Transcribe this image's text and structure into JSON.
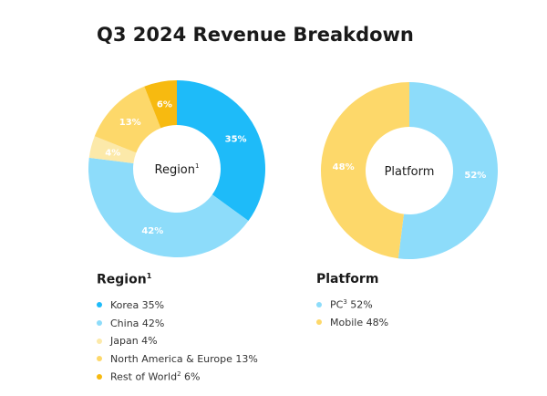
{
  "title": "Q3 2024 Revenue Breakdown",
  "chart_data": [
    {
      "type": "pie",
      "donut": true,
      "center_label": "Region",
      "center_label_sup": "1",
      "legend_title": "Region",
      "legend_title_sup": "1",
      "slices": [
        {
          "name": "Korea",
          "value": 35,
          "label": "35%",
          "legend": "Korea 35%",
          "legend_sup": "",
          "legend_tail": "",
          "color": "#1EBBF9"
        },
        {
          "name": "China",
          "value": 42,
          "label": "42%",
          "legend": "China 42%",
          "legend_sup": "",
          "legend_tail": "",
          "color": "#8DDCFA"
        },
        {
          "name": "Japan",
          "value": 4,
          "label": "4%",
          "legend": "Japan 4%",
          "legend_sup": "",
          "legend_tail": "",
          "color": "#FCE9A9"
        },
        {
          "name": "North America & Europe",
          "value": 13,
          "label": "13%",
          "legend": "North America & Europe 13%",
          "legend_sup": "",
          "legend_tail": "",
          "color": "#FDD86A"
        },
        {
          "name": "Rest of World",
          "value": 6,
          "label": "6%",
          "legend": "Rest of World",
          "legend_sup": "2",
          "legend_tail": " 6%",
          "color": "#F7BA10"
        }
      ]
    },
    {
      "type": "pie",
      "donut": true,
      "center_label": "Platform",
      "center_label_sup": "",
      "legend_title": "Platform",
      "legend_title_sup": "",
      "slices": [
        {
          "name": "PC",
          "value": 52,
          "label": "52%",
          "legend": "PC",
          "legend_sup": "3",
          "legend_tail": " 52%",
          "color": "#8DDCFA"
        },
        {
          "name": "Mobile",
          "value": 48,
          "label": "48%",
          "legend": "Mobile 48%",
          "legend_sup": "",
          "legend_tail": "",
          "color": "#FDD86A"
        }
      ]
    }
  ]
}
